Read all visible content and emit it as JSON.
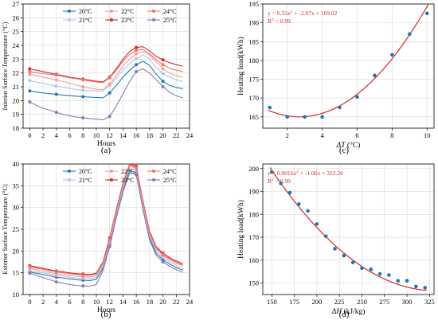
{
  "colors": {
    "20C": "#1f77b4",
    "21C": "#aec7e8",
    "22C": "#ff9896",
    "23C": "#d62728",
    "24C": "#e9766b",
    "25C": "#8c78b4",
    "scatter": "#1f77b4",
    "fit": "#d62728",
    "grid": "#d9d9d9"
  },
  "chart_data": [
    {
      "id": "a",
      "type": "line",
      "panel_label": "(a)",
      "xlabel": "Hours",
      "ylabel": "Interior Surface Temperature (°C)",
      "xlim": [
        -1,
        24
      ],
      "ylim": [
        18,
        27
      ],
      "xticks": [
        "0",
        "2",
        "4",
        "6",
        "8",
        "10",
        "12",
        "14",
        "16",
        "18",
        "20",
        "22",
        "24"
      ],
      "yticks": [
        "18",
        "19",
        "20",
        "21",
        "22",
        "23",
        "24",
        "25",
        "26",
        "27"
      ],
      "grid": true,
      "legend_position": "top-center",
      "legend_columns": 3,
      "x": [
        0,
        1,
        2,
        3,
        4,
        5,
        6,
        7,
        8,
        9,
        10,
        11,
        12,
        13,
        14,
        15,
        16,
        17,
        18,
        19,
        20,
        21,
        22,
        23
      ],
      "marker_every": 4,
      "series": [
        {
          "name": "20°C",
          "color_key": "20C",
          "values": [
            20.7,
            20.62,
            20.55,
            20.5,
            20.45,
            20.4,
            20.36,
            20.32,
            20.28,
            20.25,
            20.22,
            20.2,
            20.55,
            21.1,
            21.7,
            22.2,
            22.6,
            22.85,
            22.55,
            21.9,
            21.4,
            21.1,
            20.95,
            20.85
          ]
        },
        {
          "name": "21°C",
          "color_key": "21C",
          "values": [
            21.45,
            21.35,
            21.25,
            21.15,
            21.05,
            20.95,
            20.88,
            20.8,
            20.75,
            20.72,
            20.7,
            20.7,
            21.1,
            21.6,
            22.2,
            22.7,
            23.05,
            23.3,
            23.0,
            22.4,
            21.95,
            21.7,
            21.5,
            21.4
          ]
        },
        {
          "name": "22°C",
          "color_key": "22C",
          "values": [
            21.9,
            21.8,
            21.7,
            21.6,
            21.5,
            21.38,
            21.25,
            21.12,
            21.0,
            20.9,
            20.82,
            20.8,
            21.2,
            21.8,
            22.5,
            23.0,
            23.4,
            23.55,
            23.3,
            22.8,
            22.3,
            22.0,
            21.8,
            21.7
          ]
        },
        {
          "name": "23°C",
          "color_key": "23C",
          "values": [
            22.3,
            22.2,
            22.1,
            22.0,
            21.9,
            21.8,
            21.7,
            21.62,
            21.55,
            21.48,
            21.4,
            21.35,
            21.7,
            22.3,
            23.0,
            23.55,
            23.85,
            23.9,
            23.6,
            23.2,
            22.95,
            22.75,
            22.6,
            22.5
          ]
        },
        {
          "name": "24°C",
          "color_key": "24C",
          "values": [
            22.1,
            22.02,
            21.95,
            21.9,
            21.85,
            21.75,
            21.65,
            21.58,
            21.5,
            21.42,
            21.35,
            21.3,
            21.65,
            22.2,
            22.85,
            23.35,
            23.65,
            23.7,
            23.4,
            22.95,
            22.6,
            22.35,
            22.2,
            22.1
          ]
        },
        {
          "name": "25°C",
          "color_key": "25C",
          "values": [
            19.9,
            19.65,
            19.45,
            19.3,
            19.15,
            19.0,
            18.9,
            18.8,
            18.75,
            18.7,
            18.65,
            18.6,
            18.85,
            19.6,
            20.5,
            21.4,
            22.1,
            22.3,
            22.0,
            21.5,
            21.0,
            20.6,
            20.35,
            20.2
          ]
        }
      ]
    },
    {
      "id": "b",
      "type": "line",
      "panel_label": "(b)",
      "xlabel": "Hours",
      "ylabel": "Exterior Surface Temperature (°C)",
      "xlim": [
        -1,
        24
      ],
      "ylim": [
        10,
        40
      ],
      "xticks": [
        "0",
        "2",
        "4",
        "6",
        "8",
        "10",
        "12",
        "14",
        "16",
        "18",
        "20",
        "22",
        "24"
      ],
      "yticks": [
        "10",
        "15",
        "20",
        "25",
        "30",
        "35",
        "40"
      ],
      "grid": true,
      "legend_position": "top-center",
      "legend_columns": 3,
      "x": [
        0,
        1,
        2,
        3,
        4,
        5,
        6,
        7,
        8,
        9,
        10,
        11,
        12,
        13,
        14,
        15,
        16,
        17,
        18,
        19,
        20,
        21,
        22,
        23
      ],
      "marker_every": 4,
      "series": [
        {
          "name": "20°C",
          "color_key": "20C",
          "values": [
            15.2,
            14.9,
            14.6,
            14.3,
            14.0,
            13.8,
            13.6,
            13.4,
            13.3,
            13.2,
            13.5,
            16.0,
            21.5,
            28.0,
            34.0,
            38.5,
            38.0,
            30.0,
            23.0,
            19.5,
            18.0,
            17.0,
            16.2,
            15.6
          ]
        },
        {
          "name": "21°C",
          "color_key": "21C",
          "values": [
            15.6,
            15.3,
            15.0,
            14.7,
            14.4,
            14.2,
            14.0,
            13.8,
            13.7,
            13.6,
            13.9,
            16.5,
            22.0,
            28.5,
            34.5,
            39.0,
            38.5,
            30.5,
            23.5,
            20.0,
            18.5,
            17.5,
            16.7,
            16.1
          ]
        },
        {
          "name": "22°C",
          "color_key": "22C",
          "values": [
            16.0,
            15.7,
            15.4,
            15.1,
            14.8,
            14.6,
            14.4,
            14.2,
            14.1,
            14.0,
            14.3,
            16.9,
            22.4,
            29.0,
            35.0,
            39.5,
            39.0,
            31.0,
            24.0,
            20.5,
            19.0,
            18.0,
            17.2,
            16.6
          ]
        },
        {
          "name": "23°C",
          "color_key": "23C",
          "values": [
            16.6,
            16.3,
            16.0,
            15.7,
            15.4,
            15.2,
            15.0,
            14.8,
            14.7,
            14.6,
            14.9,
            17.5,
            23.0,
            29.5,
            35.5,
            40.0,
            39.5,
            31.5,
            24.5,
            21.0,
            19.5,
            18.5,
            17.7,
            17.1
          ]
        },
        {
          "name": "24°C",
          "color_key": "24C",
          "values": [
            16.4,
            16.1,
            15.8,
            15.5,
            15.2,
            15.0,
            14.8,
            14.6,
            14.5,
            14.4,
            14.7,
            17.2,
            22.7,
            29.2,
            35.2,
            39.7,
            39.2,
            31.2,
            24.2,
            20.7,
            19.2,
            18.2,
            17.4,
            16.8
          ]
        },
        {
          "name": "25°C",
          "color_key": "25C",
          "values": [
            14.9,
            14.4,
            13.9,
            13.4,
            12.9,
            12.6,
            12.3,
            12.1,
            12.0,
            11.9,
            12.3,
            15.5,
            21.0,
            27.5,
            33.5,
            38.0,
            37.5,
            29.5,
            22.5,
            19.0,
            17.5,
            16.5,
            15.7,
            15.1
          ]
        }
      ]
    },
    {
      "id": "c",
      "type": "scatter",
      "panel_label": "(c)",
      "xlabel_symbol": "ΔT",
      "xlabel_unit": " (°C)",
      "ylabel": "Heating load(kWh)",
      "xlim": [
        0.6,
        10.4
      ],
      "ylim": [
        162,
        195
      ],
      "xticks": [
        "2",
        "4",
        "6",
        "8",
        "10"
      ],
      "yticks": [
        "165",
        "170",
        "175",
        "180",
        "185",
        "190",
        "195"
      ],
      "grid": true,
      "points": {
        "x": [
          1,
          2,
          3,
          4,
          5,
          6,
          7,
          8,
          9,
          10
        ],
        "y": [
          167.5,
          165.0,
          165.0,
          165.0,
          167.5,
          170.3,
          176.0,
          181.5,
          187.0,
          192.5
        ]
      },
      "fit": {
        "a": 0.55,
        "b": -2.97,
        "c": 169.02,
        "x_range": [
          0.9,
          10.1
        ]
      },
      "equation_parts": [
        "y = 0.55x",
        "2",
        " + -2.97x + 169.02"
      ],
      "r2_parts": [
        "R",
        "2",
        " = 0.99"
      ]
    },
    {
      "id": "d",
      "type": "scatter",
      "panel_label": "(d)",
      "xlabel_symbol": "ΔH",
      "xlabel_unit": " (kJ/kg)",
      "ylabel": "Heating load(kWh)",
      "xlim": [
        140,
        330
      ],
      "ylim": [
        145,
        202
      ],
      "xticks": [
        "150",
        "175",
        "200",
        "225",
        "250",
        "275",
        "300",
        "325"
      ],
      "yticks": [
        "150",
        "160",
        "170",
        "180",
        "190",
        "200"
      ],
      "grid": true,
      "points": {
        "x": [
          150,
          160,
          170,
          180,
          190,
          200,
          210,
          220,
          230,
          240,
          250,
          260,
          270,
          280,
          290,
          300,
          310,
          320
        ],
        "y": [
          198.5,
          193.5,
          189.5,
          184.5,
          181.5,
          175.8,
          170.5,
          165.0,
          162.0,
          159.0,
          156.5,
          156.0,
          154.0,
          153.5,
          151.0,
          151.0,
          148.5,
          148.0
        ]
      },
      "fit": {
        "a": 0.0016,
        "b": -1.06,
        "c": 322.26,
        "x_range": [
          148,
          322
        ]
      },
      "equation_parts": [
        "y = 0.0016x",
        "2",
        " + -1.06x + 322.26"
      ],
      "r2_parts": [
        "R",
        "2",
        " = 0.99"
      ]
    }
  ]
}
